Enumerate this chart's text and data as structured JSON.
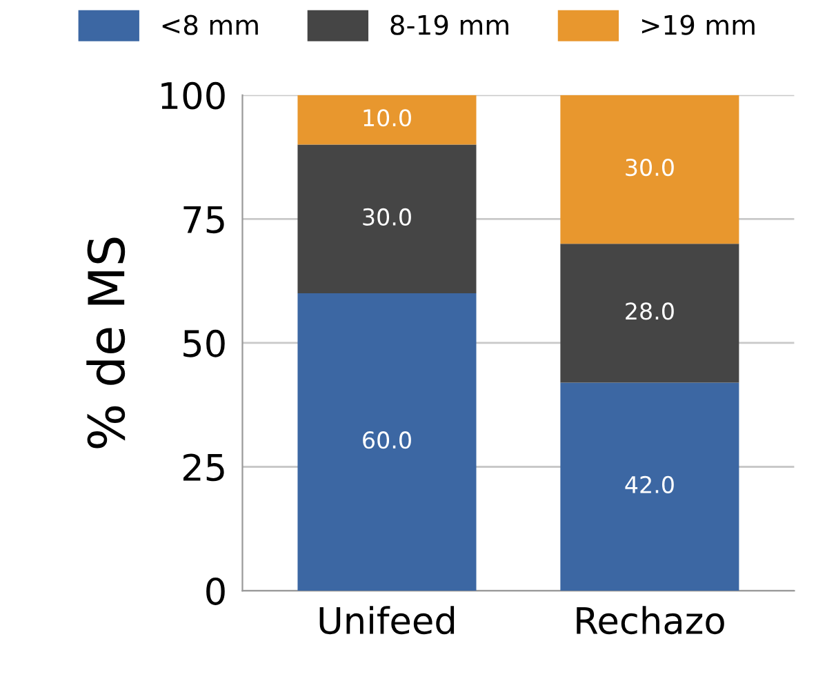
{
  "chart_data": {
    "type": "bar",
    "stacked": true,
    "ylabel": "% de MS",
    "categories": [
      "Unifeed",
      "Rechazo"
    ],
    "series": [
      {
        "name": "<8 mm",
        "color": "#3c67a3",
        "values": [
          60,
          42
        ],
        "value_labels": [
          "60.0",
          "42.0"
        ]
      },
      {
        "name": "8-19 mm",
        "color": "#454545",
        "values": [
          30,
          28
        ],
        "value_labels": [
          "30.0",
          "28.0"
        ]
      },
      {
        "name": ">19 mm",
        "color": "#e8972e",
        "values": [
          10,
          30
        ],
        "value_labels": [
          "10.0",
          "30.0"
        ]
      }
    ],
    "ylim": [
      0,
      100
    ],
    "yticks": [
      0,
      25,
      50,
      75,
      100
    ],
    "grid": "y",
    "legend": "top"
  }
}
